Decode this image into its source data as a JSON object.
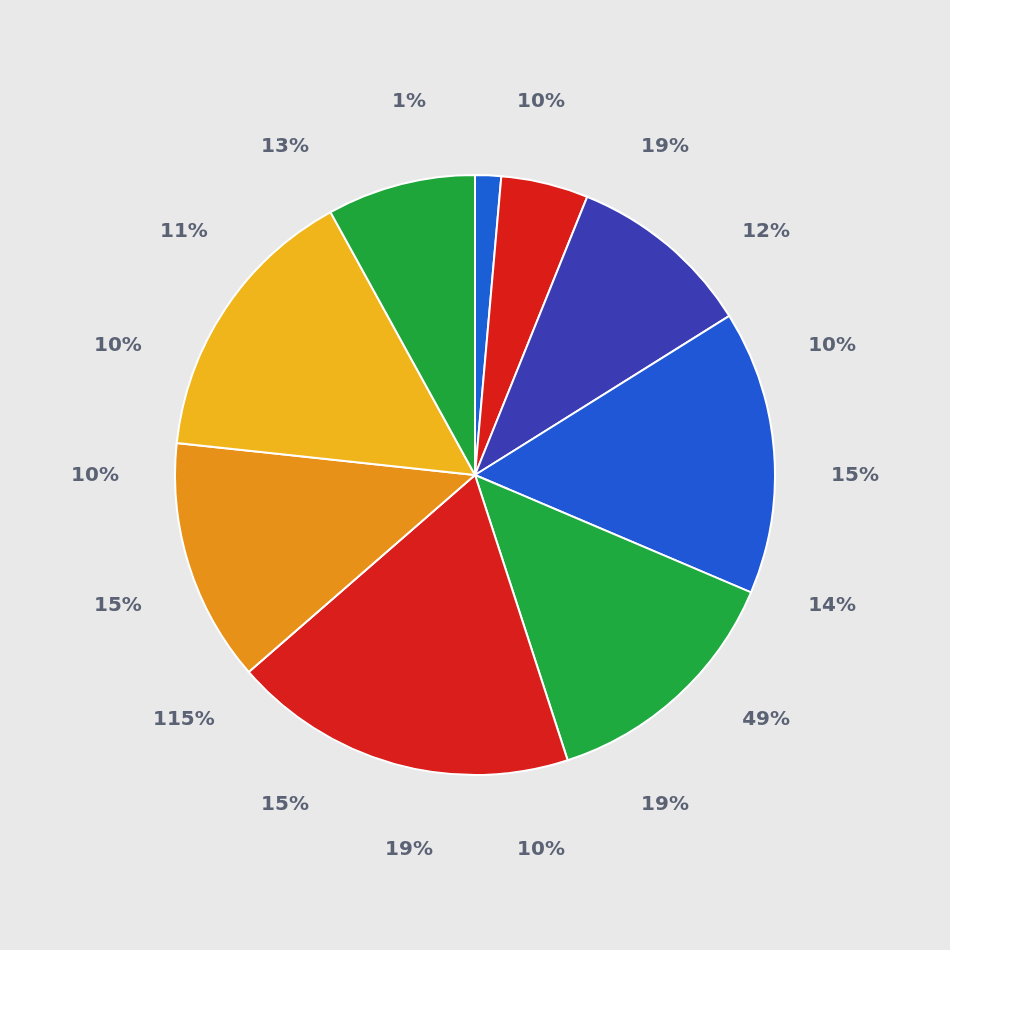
{
  "chart_data": {
    "type": "pie",
    "categories": [
      null,
      null,
      null,
      null,
      null,
      null,
      null,
      null,
      null
    ],
    "values": [
      1.4,
      4.7,
      10.0,
      15.3,
      13.6,
      18.6,
      13.1,
      15.3,
      8.0
    ],
    "colors": [
      "#1a5fd6",
      "#dc1c17",
      "#3b3cb4",
      "#1f57d6",
      "#1eaa3f",
      "#d91e1b",
      "#e89118",
      "#f1b51c",
      "#1ea63a"
    ],
    "annotations": [
      "10%",
      "19%",
      "12%",
      "10%",
      "15%",
      "14%",
      "49%",
      "19%",
      "10%",
      "19%",
      "15%",
      "115%",
      "15%",
      "10%",
      "10%",
      "11%",
      "13%",
      "1%"
    ]
  }
}
